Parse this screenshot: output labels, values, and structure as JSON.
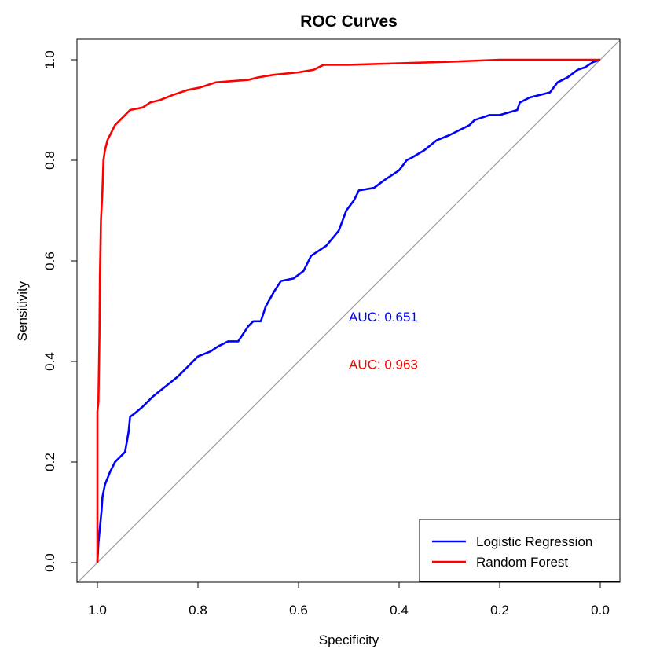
{
  "chart_data": {
    "type": "line",
    "title": "ROC Curves",
    "xlabel": "Specificity",
    "ylabel": "Sensitivity",
    "xlim": [
      1.0,
      0.0
    ],
    "ylim": [
      0.0,
      1.0
    ],
    "x_reversed": true,
    "xticks": [
      1.0,
      0.8,
      0.6,
      0.4,
      0.2,
      0.0
    ],
    "xtick_labels": [
      "1.0",
      "0.8",
      "0.6",
      "0.4",
      "0.2",
      "0.0"
    ],
    "yticks": [
      0.0,
      0.2,
      0.4,
      0.6,
      0.8,
      1.0
    ],
    "ytick_labels": [
      "0.0",
      "0.2",
      "0.4",
      "0.6",
      "0.8",
      "1.0"
    ],
    "grid": false,
    "legend_position": "bottom-right",
    "reference_line": {
      "from": [
        1.0,
        0.0
      ],
      "to": [
        0.0,
        1.0
      ],
      "color": "#a0a0a0"
    },
    "series": [
      {
        "name": "Logistic Regression",
        "color": "#0000ff",
        "auc_label": "AUC: 0.651",
        "auc_label_at": [
          0.5,
          0.48
        ],
        "specificity": [
          1.0,
          0.998,
          0.995,
          0.992,
          0.99,
          0.985,
          0.975,
          0.965,
          0.955,
          0.945,
          0.938,
          0.935,
          0.928,
          0.91,
          0.89,
          0.865,
          0.84,
          0.82,
          0.8,
          0.775,
          0.76,
          0.74,
          0.72,
          0.7,
          0.69,
          0.675,
          0.665,
          0.648,
          0.635,
          0.61,
          0.59,
          0.575,
          0.56,
          0.545,
          0.52,
          0.505,
          0.49,
          0.48,
          0.45,
          0.43,
          0.4,
          0.385,
          0.375,
          0.35,
          0.325,
          0.3,
          0.26,
          0.25,
          0.22,
          0.2,
          0.165,
          0.16,
          0.14,
          0.1,
          0.085,
          0.065,
          0.045,
          0.03,
          0.015,
          0.0
        ],
        "sensitivity": [
          0.0,
          0.04,
          0.07,
          0.1,
          0.13,
          0.155,
          0.18,
          0.2,
          0.21,
          0.22,
          0.26,
          0.29,
          0.295,
          0.31,
          0.33,
          0.35,
          0.37,
          0.39,
          0.41,
          0.42,
          0.43,
          0.44,
          0.44,
          0.47,
          0.48,
          0.48,
          0.51,
          0.54,
          0.56,
          0.565,
          0.58,
          0.61,
          0.62,
          0.63,
          0.66,
          0.7,
          0.72,
          0.74,
          0.745,
          0.76,
          0.78,
          0.8,
          0.805,
          0.82,
          0.84,
          0.85,
          0.87,
          0.88,
          0.89,
          0.89,
          0.9,
          0.915,
          0.925,
          0.935,
          0.955,
          0.965,
          0.98,
          0.985,
          0.995,
          1.0
        ]
      },
      {
        "name": "Random Forest",
        "color": "#ff0000",
        "auc_label": "AUC: 0.963",
        "auc_label_at": [
          0.5,
          0.385
        ],
        "specificity": [
          1.0,
          1.0,
          0.998,
          0.996,
          0.995,
          0.993,
          0.99,
          0.988,
          0.985,
          0.98,
          0.975,
          0.965,
          0.955,
          0.945,
          0.935,
          0.91,
          0.895,
          0.875,
          0.85,
          0.82,
          0.795,
          0.78,
          0.765,
          0.7,
          0.68,
          0.65,
          0.6,
          0.57,
          0.55,
          0.5,
          0.4,
          0.3,
          0.2,
          0.1,
          0.0
        ],
        "sensitivity": [
          0.0,
          0.3,
          0.32,
          0.45,
          0.57,
          0.68,
          0.74,
          0.8,
          0.82,
          0.84,
          0.85,
          0.87,
          0.88,
          0.89,
          0.9,
          0.905,
          0.915,
          0.92,
          0.93,
          0.94,
          0.945,
          0.95,
          0.955,
          0.96,
          0.965,
          0.97,
          0.975,
          0.98,
          0.99,
          0.99,
          0.993,
          0.996,
          1.0,
          1.0,
          1.0
        ]
      }
    ]
  }
}
